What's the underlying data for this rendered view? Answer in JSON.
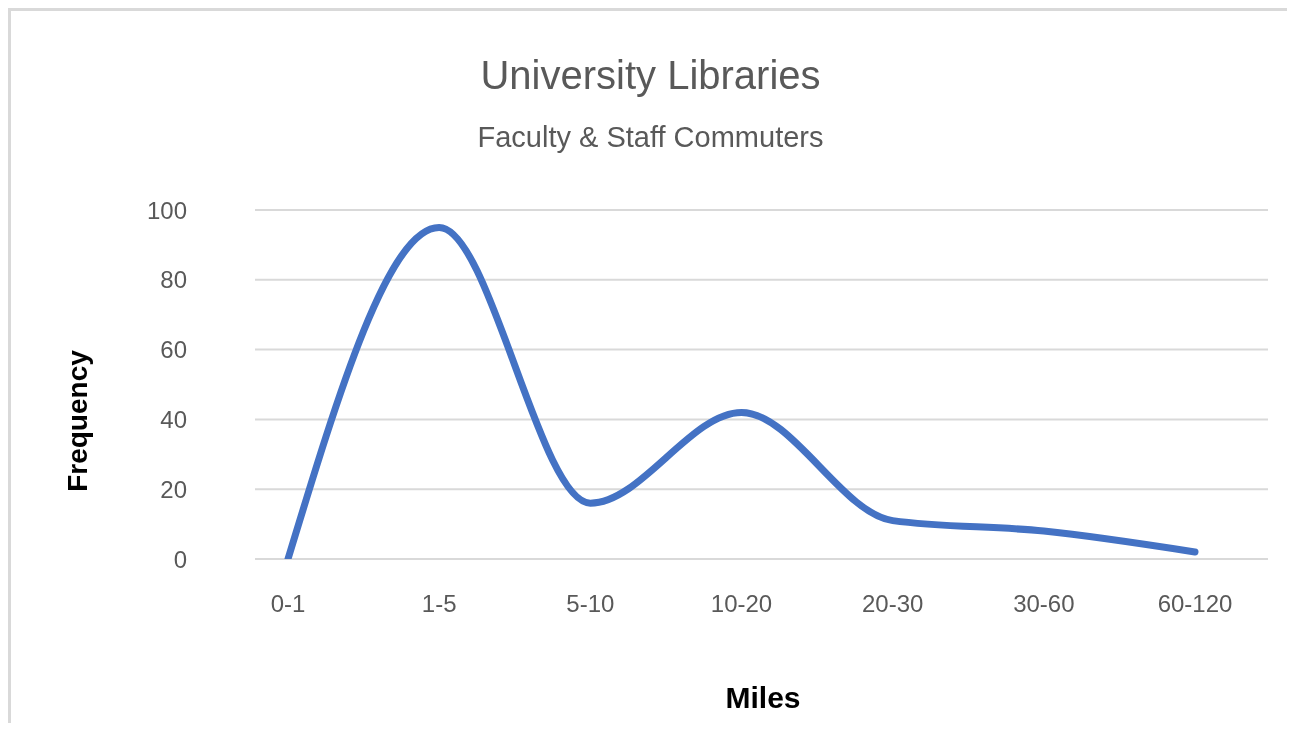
{
  "chart_data": {
    "type": "line",
    "title": "University Libraries",
    "subtitle": "Faculty & Staff Commuters",
    "xlabel": "Miles",
    "ylabel": "Frequency",
    "categories": [
      "0-1",
      "1-5",
      "5-10",
      "10-20",
      "20-30",
      "30-60",
      "60-120"
    ],
    "series": [
      {
        "color": "#4472c4",
        "values": [
          0,
          95,
          16,
          42,
          11,
          8,
          2
        ]
      }
    ],
    "ylim": [
      0,
      100
    ],
    "yticks": [
      0,
      20,
      40,
      60,
      80,
      100
    ],
    "grid": "y"
  }
}
